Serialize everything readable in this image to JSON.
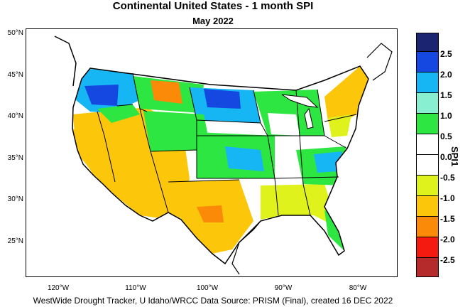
{
  "title": "Continental United States - 1 month SPI",
  "subtitle": "May 2022",
  "latitude_labels": [
    "50°N",
    "45°N",
    "40°N",
    "35°N",
    "30°N",
    "25°N"
  ],
  "longitude_labels": [
    "120°W",
    "110°W",
    "100°W",
    "90°W",
    "80°W"
  ],
  "colorbar": {
    "title": "SPI1",
    "labels": [
      "2.5",
      "2.0",
      "1.5",
      "1.0",
      "0.5",
      "0.0",
      "-0.5",
      "-1.0",
      "-1.5",
      "-2.0",
      "-2.5"
    ],
    "colors": [
      "#1a2470",
      "#1548e0",
      "#16b6f5",
      "#88f0d0",
      "#2ee642",
      "#ffffff",
      "#ffffff",
      "#dff21c",
      "#fcc70a",
      "#fb8a08",
      "#f51a10",
      "#b52a2a"
    ]
  },
  "footer": "WestWide Drought Tracker, U Idaho/WRCC Data Source: PRISM (Final), created 16 DEC 2022"
}
